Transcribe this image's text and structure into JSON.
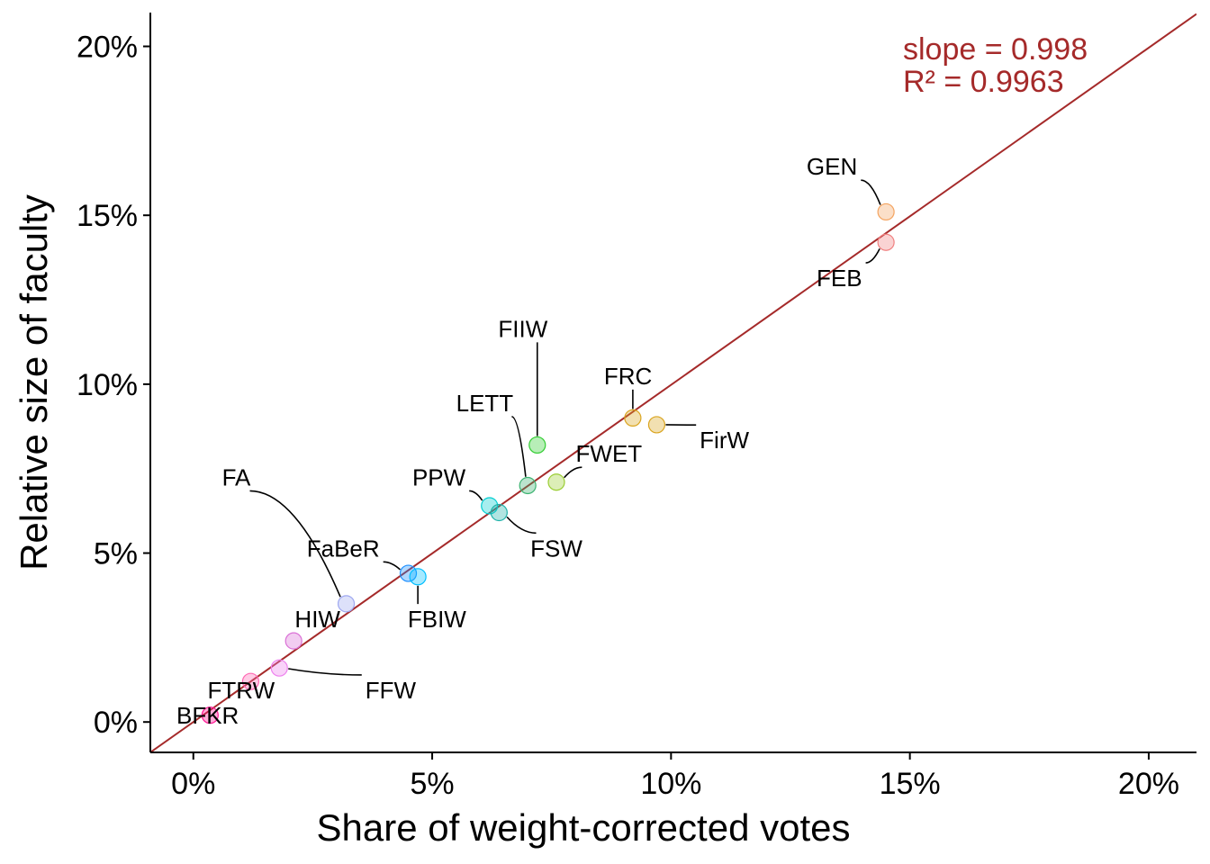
{
  "chart_data": {
    "type": "scatter",
    "title": "",
    "xlabel": "Share of weight-corrected votes",
    "ylabel": "Relative size of faculty",
    "xlim": [
      -0.9,
      21.0
    ],
    "ylim": [
      -0.9,
      21.0
    ],
    "x_ticks": [
      0,
      5,
      10,
      15,
      20
    ],
    "y_ticks": [
      0,
      5,
      10,
      15,
      20
    ],
    "x_tick_labels": [
      "0%",
      "5%",
      "10%",
      "15%",
      "20%"
    ],
    "y_tick_labels": [
      "0%",
      "5%",
      "10%",
      "15%",
      "20%"
    ],
    "grid": false,
    "legend": "none",
    "fit_line": {
      "slope": 0.998,
      "intercept": 0.0,
      "color": "#a52a2a"
    },
    "annotations": [
      "slope = 0.998",
      "R² = 0.9963"
    ],
    "annotation_color": "#a52a2a",
    "points": [
      {
        "label": "GEN",
        "x": 14.5,
        "y": 15.1,
        "color": "#f4a460",
        "lx": 13.9,
        "ly": 16.2,
        "anchor": "end"
      },
      {
        "label": "FEB",
        "x": 14.5,
        "y": 14.2,
        "color": "#f08080",
        "lx": 14.0,
        "ly": 12.9,
        "anchor": "end"
      },
      {
        "label": "FIIW",
        "x": 7.2,
        "y": 8.2,
        "color": "#32cd32",
        "lx": 6.9,
        "ly": 11.4,
        "anchor": "middle"
      },
      {
        "label": "FRC",
        "x": 9.2,
        "y": 9.0,
        "color": "#daa520",
        "lx": 9.1,
        "ly": 10.0,
        "anchor": "middle"
      },
      {
        "label": "FirW",
        "x": 9.7,
        "y": 8.8,
        "color": "#daa520",
        "lx": 10.6,
        "ly": 8.1,
        "anchor": "start"
      },
      {
        "label": "LETT",
        "x": 7.0,
        "y": 7.0,
        "color": "#3cb371",
        "lx": 6.1,
        "ly": 9.2,
        "anchor": "middle"
      },
      {
        "label": "FWET",
        "x": 7.6,
        "y": 7.1,
        "color": "#9acd32",
        "lx": 8.7,
        "ly": 7.7,
        "anchor": "middle"
      },
      {
        "label": "PPW",
        "x": 6.2,
        "y": 6.4,
        "color": "#00ced1",
        "lx": 5.7,
        "ly": 7.0,
        "anchor": "end"
      },
      {
        "label": "FSW",
        "x": 6.4,
        "y": 6.2,
        "color": "#20b2aa",
        "lx": 7.6,
        "ly": 4.9,
        "anchor": "middle"
      },
      {
        "label": "FA",
        "x": 3.2,
        "y": 3.5,
        "color": "#9fa8f0",
        "lx": 0.9,
        "ly": 7.0,
        "anchor": "middle"
      },
      {
        "label": "FaBeR",
        "x": 4.5,
        "y": 4.4,
        "color": "#1e90ff",
        "lx": 3.9,
        "ly": 4.9,
        "anchor": "end"
      },
      {
        "label": "FBIW",
        "x": 4.7,
        "y": 4.3,
        "color": "#00bfff",
        "lx": 5.1,
        "ly": 2.8,
        "anchor": "middle"
      },
      {
        "label": "HIW",
        "x": 2.1,
        "y": 2.4,
        "color": "#da70d6",
        "lx": 2.6,
        "ly": 2.8,
        "anchor": "middle"
      },
      {
        "label": "FFW",
        "x": 1.8,
        "y": 1.6,
        "color": "#ee82ee",
        "lx": 3.6,
        "ly": 0.7,
        "anchor": "start"
      },
      {
        "label": "FTRW",
        "x": 1.2,
        "y": 1.2,
        "color": "#ff69b4",
        "lx": 1.0,
        "ly": 0.7,
        "anchor": "middle"
      },
      {
        "label": "BFKR",
        "x": 0.35,
        "y": 0.2,
        "color": "#ff1493",
        "lx": 0.3,
        "ly": -0.05,
        "anchor": "middle"
      }
    ]
  }
}
